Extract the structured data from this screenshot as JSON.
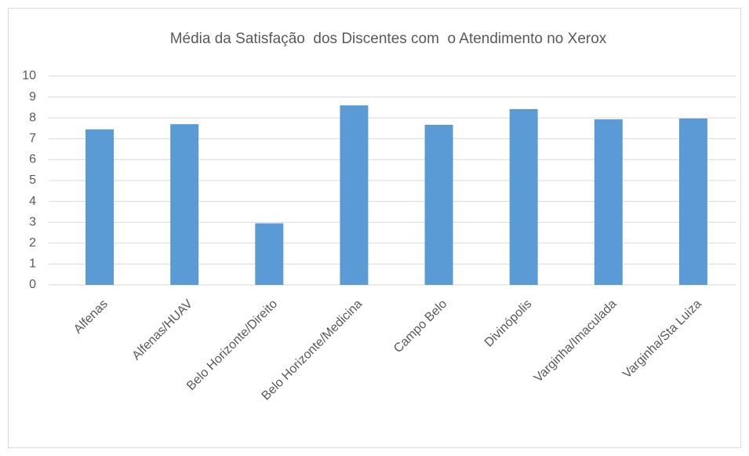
{
  "chart_data": {
    "type": "bar",
    "title": "Média da Satisfação  dos Discentes com  o Atendimento no Xerox",
    "categories": [
      "Alfenas",
      "Alfenas/HUAV",
      "Belo Horizonte/Direito",
      "Belo Horizonte/Medicina",
      "Campo Belo",
      "Divinópolis",
      "Varginha/Imaculada",
      "Varginha/Sta Luiza"
    ],
    "values": [
      7.45,
      7.7,
      2.95,
      8.6,
      7.67,
      8.42,
      7.93,
      7.97
    ],
    "color": "#5b9bd5",
    "ylim": [
      0,
      10
    ],
    "yticks": [
      0,
      1,
      2,
      3,
      4,
      5,
      6,
      7,
      8,
      9,
      10
    ],
    "grid": true
  }
}
